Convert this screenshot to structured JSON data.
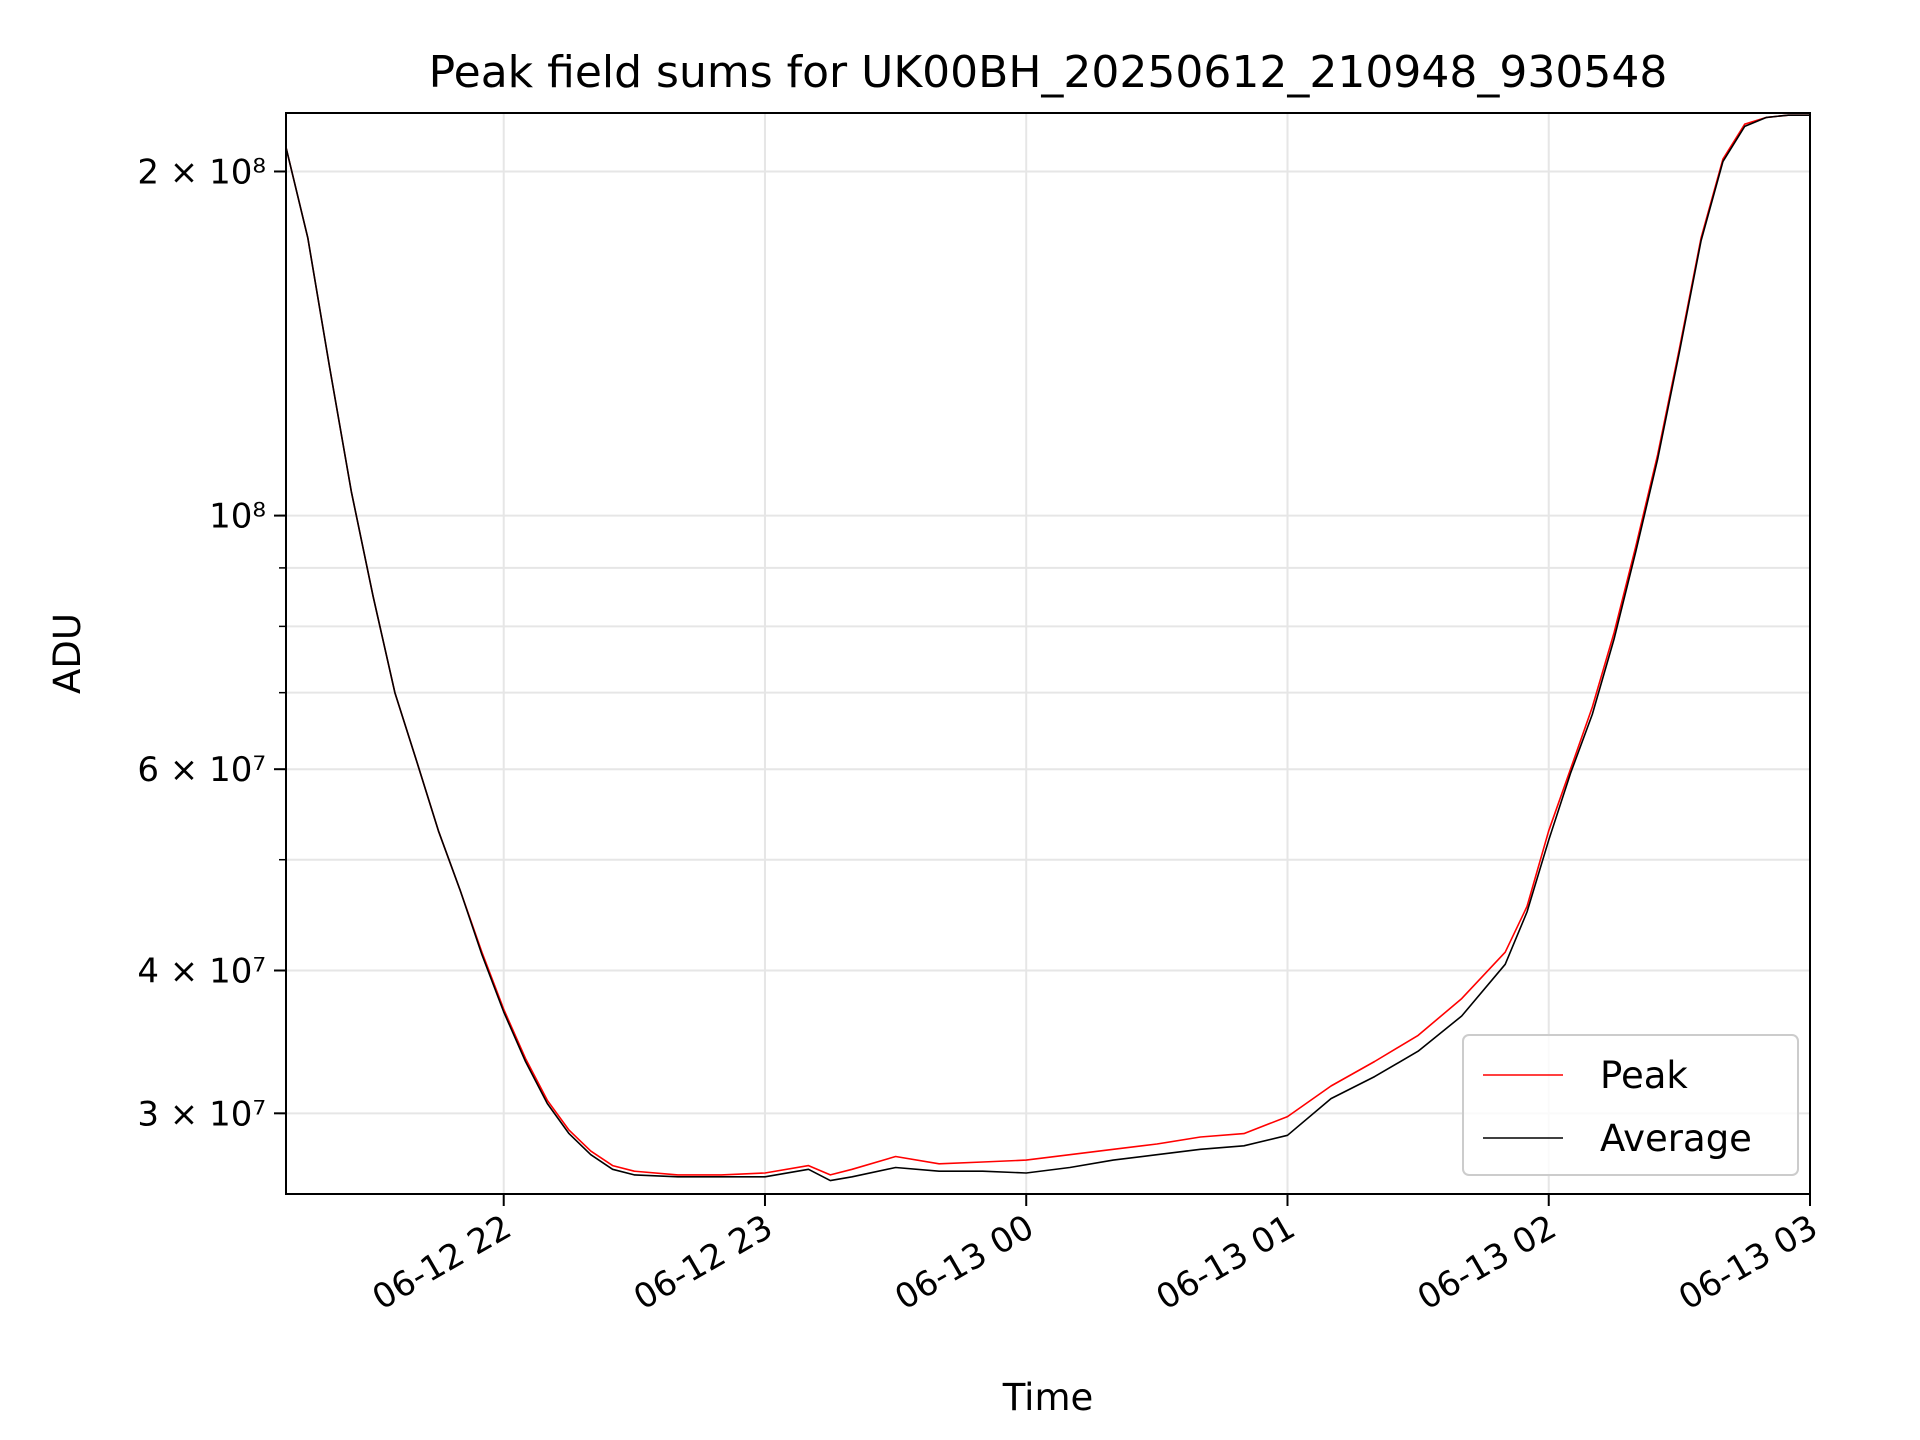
{
  "chart_data": {
    "type": "line",
    "title": "Peak field sums for UK00BH_20250612_210948_930548",
    "xlabel": "Time",
    "ylabel": "ADU",
    "y_scale": "log",
    "ylim": [
      25500000,
      225000000
    ],
    "xlim": [
      "2025-06-12 21:10",
      "2025-06-13 03:00"
    ],
    "grid": true,
    "legend_position": "lower-right",
    "x_ticks": [
      {
        "t": "2025-06-12 22:00",
        "label": "06-12 22"
      },
      {
        "t": "2025-06-12 23:00",
        "label": "06-12 23"
      },
      {
        "t": "2025-06-13 00:00",
        "label": "06-13 00"
      },
      {
        "t": "2025-06-13 01:00",
        "label": "06-13 01"
      },
      {
        "t": "2025-06-13 02:00",
        "label": "06-13 02"
      },
      {
        "t": "2025-06-13 03:00",
        "label": "06-13 03"
      }
    ],
    "y_ticks": [
      {
        "value": 30000000,
        "label": "3 × 10⁷"
      },
      {
        "value": 40000000,
        "label": "4 × 10⁷"
      },
      {
        "value": 60000000,
        "label": "6 × 10⁷"
      },
      {
        "value": 100000000,
        "label": "10⁸"
      },
      {
        "value": 200000000,
        "label": "2 × 10⁸"
      }
    ],
    "series": [
      {
        "name": "Peak",
        "color": "#ff0000",
        "x": [
          "2025-06-12 21:10",
          "2025-06-12 21:15",
          "2025-06-12 21:20",
          "2025-06-12 21:25",
          "2025-06-12 21:30",
          "2025-06-12 21:35",
          "2025-06-12 21:40",
          "2025-06-12 21:45",
          "2025-06-12 21:50",
          "2025-06-12 21:55",
          "2025-06-12 22:00",
          "2025-06-12 22:05",
          "2025-06-12 22:10",
          "2025-06-12 22:15",
          "2025-06-12 22:20",
          "2025-06-12 22:25",
          "2025-06-12 22:30",
          "2025-06-12 22:40",
          "2025-06-12 22:50",
          "2025-06-12 23:00",
          "2025-06-12 23:10",
          "2025-06-12 23:15",
          "2025-06-12 23:20",
          "2025-06-12 23:30",
          "2025-06-12 23:40",
          "2025-06-12 23:50",
          "2025-06-13 00:00",
          "2025-06-13 00:10",
          "2025-06-13 00:20",
          "2025-06-13 00:30",
          "2025-06-13 00:40",
          "2025-06-13 00:50",
          "2025-06-13 01:00",
          "2025-06-13 01:10",
          "2025-06-13 01:20",
          "2025-06-13 01:30",
          "2025-06-13 01:40",
          "2025-06-13 01:50",
          "2025-06-13 01:55",
          "2025-06-13 02:00",
          "2025-06-13 02:05",
          "2025-06-13 02:10",
          "2025-06-13 02:15",
          "2025-06-13 02:20",
          "2025-06-13 02:25",
          "2025-06-13 02:30",
          "2025-06-13 02:35",
          "2025-06-13 02:40",
          "2025-06-13 02:45",
          "2025-06-13 02:50",
          "2025-06-13 02:55",
          "2025-06-13 03:00"
        ],
        "y": [
          210000000,
          175000000,
          135000000,
          105000000,
          85000000,
          70000000,
          61000000,
          53000000,
          47000000,
          41500000,
          37000000,
          33500000,
          30800000,
          29000000,
          27800000,
          27000000,
          26700000,
          26500000,
          26500000,
          26600000,
          27000000,
          26500000,
          26800000,
          27500000,
          27100000,
          27200000,
          27300000,
          27600000,
          27900000,
          28200000,
          28600000,
          28800000,
          29800000,
          31700000,
          33300000,
          35100000,
          37800000,
          41500000,
          45500000,
          53000000,
          60000000,
          68000000,
          79000000,
          94000000,
          113000000,
          140000000,
          175000000,
          205000000,
          220000000,
          223000000,
          224000000,
          224000000
        ]
      },
      {
        "name": "Average",
        "color": "#000000",
        "x": [
          "2025-06-12 21:10",
          "2025-06-12 21:15",
          "2025-06-12 21:20",
          "2025-06-12 21:25",
          "2025-06-12 21:30",
          "2025-06-12 21:35",
          "2025-06-12 21:40",
          "2025-06-12 21:45",
          "2025-06-12 21:50",
          "2025-06-12 21:55",
          "2025-06-12 22:00",
          "2025-06-12 22:05",
          "2025-06-12 22:10",
          "2025-06-12 22:15",
          "2025-06-12 22:20",
          "2025-06-12 22:25",
          "2025-06-12 22:30",
          "2025-06-12 22:40",
          "2025-06-12 22:50",
          "2025-06-12 23:00",
          "2025-06-12 23:10",
          "2025-06-12 23:15",
          "2025-06-12 23:20",
          "2025-06-12 23:30",
          "2025-06-12 23:40",
          "2025-06-12 23:50",
          "2025-06-13 00:00",
          "2025-06-13 00:10",
          "2025-06-13 00:20",
          "2025-06-13 00:30",
          "2025-06-13 00:40",
          "2025-06-13 00:50",
          "2025-06-13 01:00",
          "2025-06-13 01:10",
          "2025-06-13 01:20",
          "2025-06-13 01:30",
          "2025-06-13 01:40",
          "2025-06-13 01:50",
          "2025-06-13 01:55",
          "2025-06-13 02:00",
          "2025-06-13 02:05",
          "2025-06-13 02:10",
          "2025-06-13 02:15",
          "2025-06-13 02:20",
          "2025-06-13 02:25",
          "2025-06-13 02:30",
          "2025-06-13 02:35",
          "2025-06-13 02:40",
          "2025-06-13 02:45",
          "2025-06-13 02:50",
          "2025-06-13 02:55",
          "2025-06-13 03:00"
        ],
        "y": [
          210000000,
          175000000,
          135000000,
          105000000,
          85000000,
          70000000,
          61000000,
          53000000,
          47000000,
          41300000,
          36800000,
          33300000,
          30600000,
          28800000,
          27600000,
          26800000,
          26500000,
          26400000,
          26400000,
          26400000,
          26800000,
          26200000,
          26400000,
          26900000,
          26700000,
          26700000,
          26600000,
          26900000,
          27300000,
          27600000,
          27900000,
          28100000,
          28700000,
          30900000,
          32300000,
          34000000,
          36500000,
          40500000,
          45000000,
          52000000,
          59500000,
          67000000,
          78000000,
          93000000,
          112000000,
          139000000,
          174000000,
          204000000,
          219000000,
          223000000,
          224000000,
          224000000
        ]
      }
    ]
  }
}
